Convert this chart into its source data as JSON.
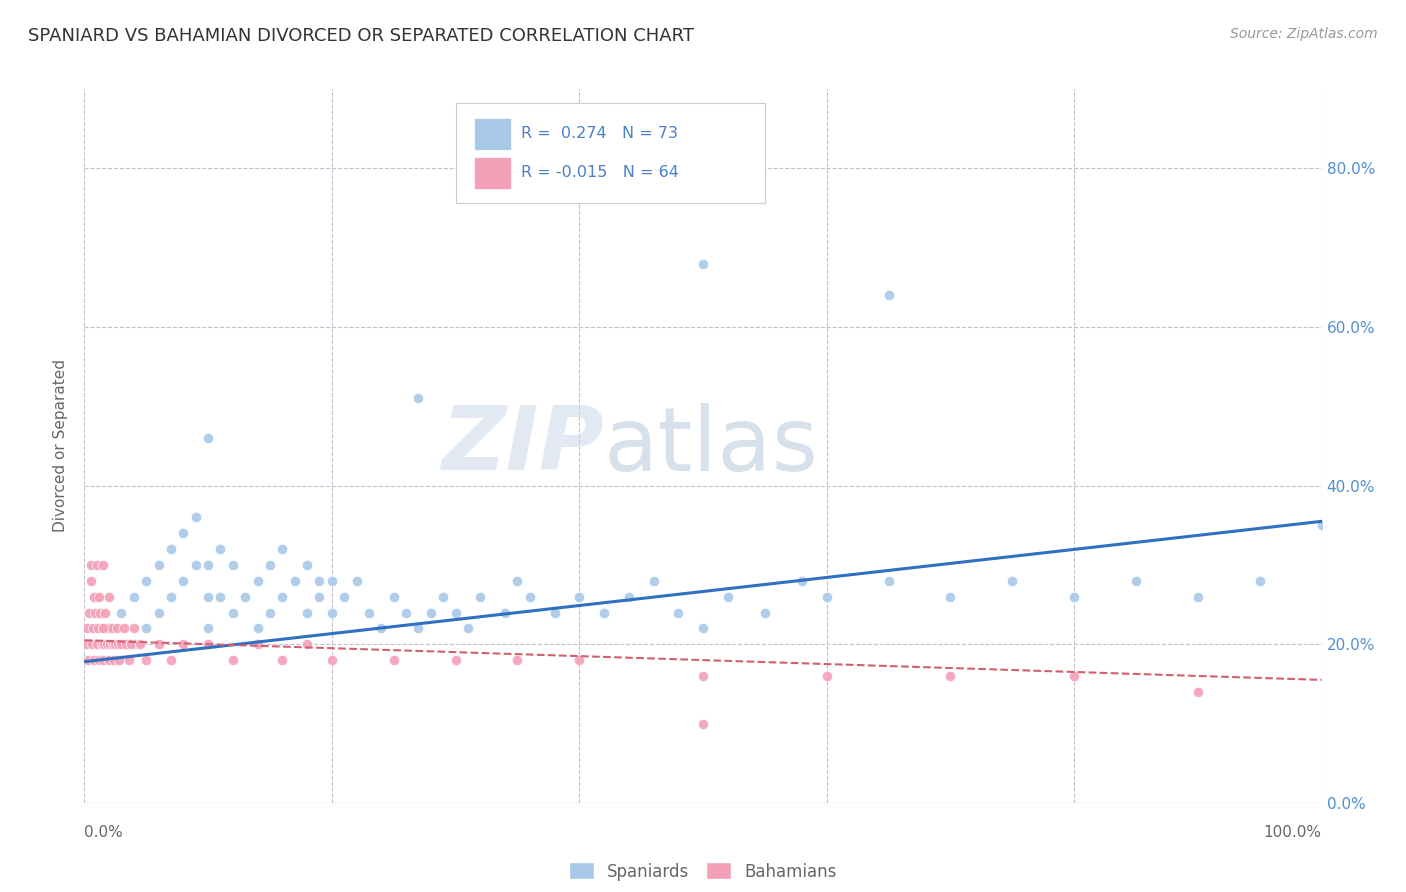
{
  "title": "SPANIARD VS BAHAMIAN DIVORCED OR SEPARATED CORRELATION CHART",
  "source_text": "Source: ZipAtlas.com",
  "xlabel_spaniards": "Spaniards",
  "xlabel_bahamians": "Bahamians",
  "ylabel": "Divorced or Separated",
  "watermark_zip": "ZIP",
  "watermark_atlas": "atlas",
  "legend_r1": "R =  0.274",
  "legend_n1": "N = 73",
  "legend_r2": "R = -0.015",
  "legend_n2": "N = 64",
  "spaniard_color": "#a8c8e8",
  "bahamian_color": "#f4a0b8",
  "spaniard_line_color": "#3070c0",
  "bahamian_line_color": "#d06070",
  "background_color": "#ffffff",
  "grid_color": "#c0c0d0",
  "xlim": [
    0.0,
    1.0
  ],
  "ylim": [
    0.0,
    0.9
  ],
  "x_ticks": [
    0.0,
    0.2,
    0.4,
    0.6,
    0.8,
    1.0
  ],
  "y_ticks": [
    0.0,
    0.2,
    0.4,
    0.6,
    0.8
  ],
  "spaniard_trend_x": [
    0.0,
    1.0
  ],
  "spaniard_trend_y": [
    0.178,
    0.355
  ],
  "bahamian_trend_x": [
    0.0,
    1.0
  ],
  "bahamian_trend_y": [
    0.205,
    0.155
  ],
  "spaniard_scatter_x": [
    0.02,
    0.03,
    0.04,
    0.04,
    0.05,
    0.05,
    0.06,
    0.06,
    0.07,
    0.07,
    0.08,
    0.08,
    0.09,
    0.09,
    0.1,
    0.1,
    0.1,
    0.11,
    0.11,
    0.12,
    0.12,
    0.13,
    0.14,
    0.14,
    0.15,
    0.15,
    0.16,
    0.16,
    0.17,
    0.18,
    0.18,
    0.19,
    0.19,
    0.2,
    0.2,
    0.21,
    0.22,
    0.23,
    0.24,
    0.25,
    0.26,
    0.27,
    0.28,
    0.29,
    0.3,
    0.31,
    0.32,
    0.34,
    0.35,
    0.36,
    0.38,
    0.4,
    0.42,
    0.44,
    0.46,
    0.48,
    0.5,
    0.52,
    0.55,
    0.58,
    0.6,
    0.65,
    0.7,
    0.75,
    0.8,
    0.85,
    0.9,
    0.95,
    1.0,
    0.27,
    0.5,
    0.65,
    0.1
  ],
  "spaniard_scatter_y": [
    0.22,
    0.24,
    0.26,
    0.2,
    0.28,
    0.22,
    0.3,
    0.24,
    0.32,
    0.26,
    0.28,
    0.34,
    0.36,
    0.3,
    0.26,
    0.3,
    0.22,
    0.26,
    0.32,
    0.3,
    0.24,
    0.26,
    0.22,
    0.28,
    0.24,
    0.3,
    0.26,
    0.32,
    0.28,
    0.3,
    0.24,
    0.28,
    0.26,
    0.24,
    0.28,
    0.26,
    0.28,
    0.24,
    0.22,
    0.26,
    0.24,
    0.22,
    0.24,
    0.26,
    0.24,
    0.22,
    0.26,
    0.24,
    0.28,
    0.26,
    0.24,
    0.26,
    0.24,
    0.26,
    0.28,
    0.24,
    0.22,
    0.26,
    0.24,
    0.28,
    0.26,
    0.28,
    0.26,
    0.28,
    0.26,
    0.28,
    0.26,
    0.28,
    0.35,
    0.51,
    0.68,
    0.64,
    0.46
  ],
  "bahamian_scatter_x": [
    0.001,
    0.002,
    0.003,
    0.004,
    0.005,
    0.006,
    0.007,
    0.008,
    0.009,
    0.01,
    0.01,
    0.011,
    0.012,
    0.013,
    0.014,
    0.015,
    0.015,
    0.016,
    0.017,
    0.018,
    0.019,
    0.02,
    0.021,
    0.022,
    0.023,
    0.024,
    0.025,
    0.026,
    0.027,
    0.028,
    0.03,
    0.032,
    0.034,
    0.036,
    0.038,
    0.04,
    0.045,
    0.05,
    0.06,
    0.07,
    0.08,
    0.1,
    0.12,
    0.14,
    0.16,
    0.18,
    0.2,
    0.25,
    0.3,
    0.35,
    0.4,
    0.5,
    0.6,
    0.7,
    0.8,
    0.9,
    0.005,
    0.008,
    0.01,
    0.012,
    0.015,
    0.015,
    0.02,
    0.5
  ],
  "bahamian_scatter_y": [
    0.2,
    0.22,
    0.18,
    0.24,
    0.28,
    0.2,
    0.22,
    0.18,
    0.24,
    0.2,
    0.26,
    0.22,
    0.18,
    0.24,
    0.2,
    0.22,
    0.18,
    0.2,
    0.24,
    0.2,
    0.22,
    0.18,
    0.2,
    0.22,
    0.2,
    0.18,
    0.2,
    0.22,
    0.2,
    0.18,
    0.2,
    0.22,
    0.2,
    0.18,
    0.2,
    0.22,
    0.2,
    0.18,
    0.2,
    0.18,
    0.2,
    0.2,
    0.18,
    0.2,
    0.18,
    0.2,
    0.18,
    0.18,
    0.18,
    0.18,
    0.18,
    0.16,
    0.16,
    0.16,
    0.16,
    0.14,
    0.3,
    0.26,
    0.3,
    0.26,
    0.3,
    0.22,
    0.26,
    0.1
  ]
}
